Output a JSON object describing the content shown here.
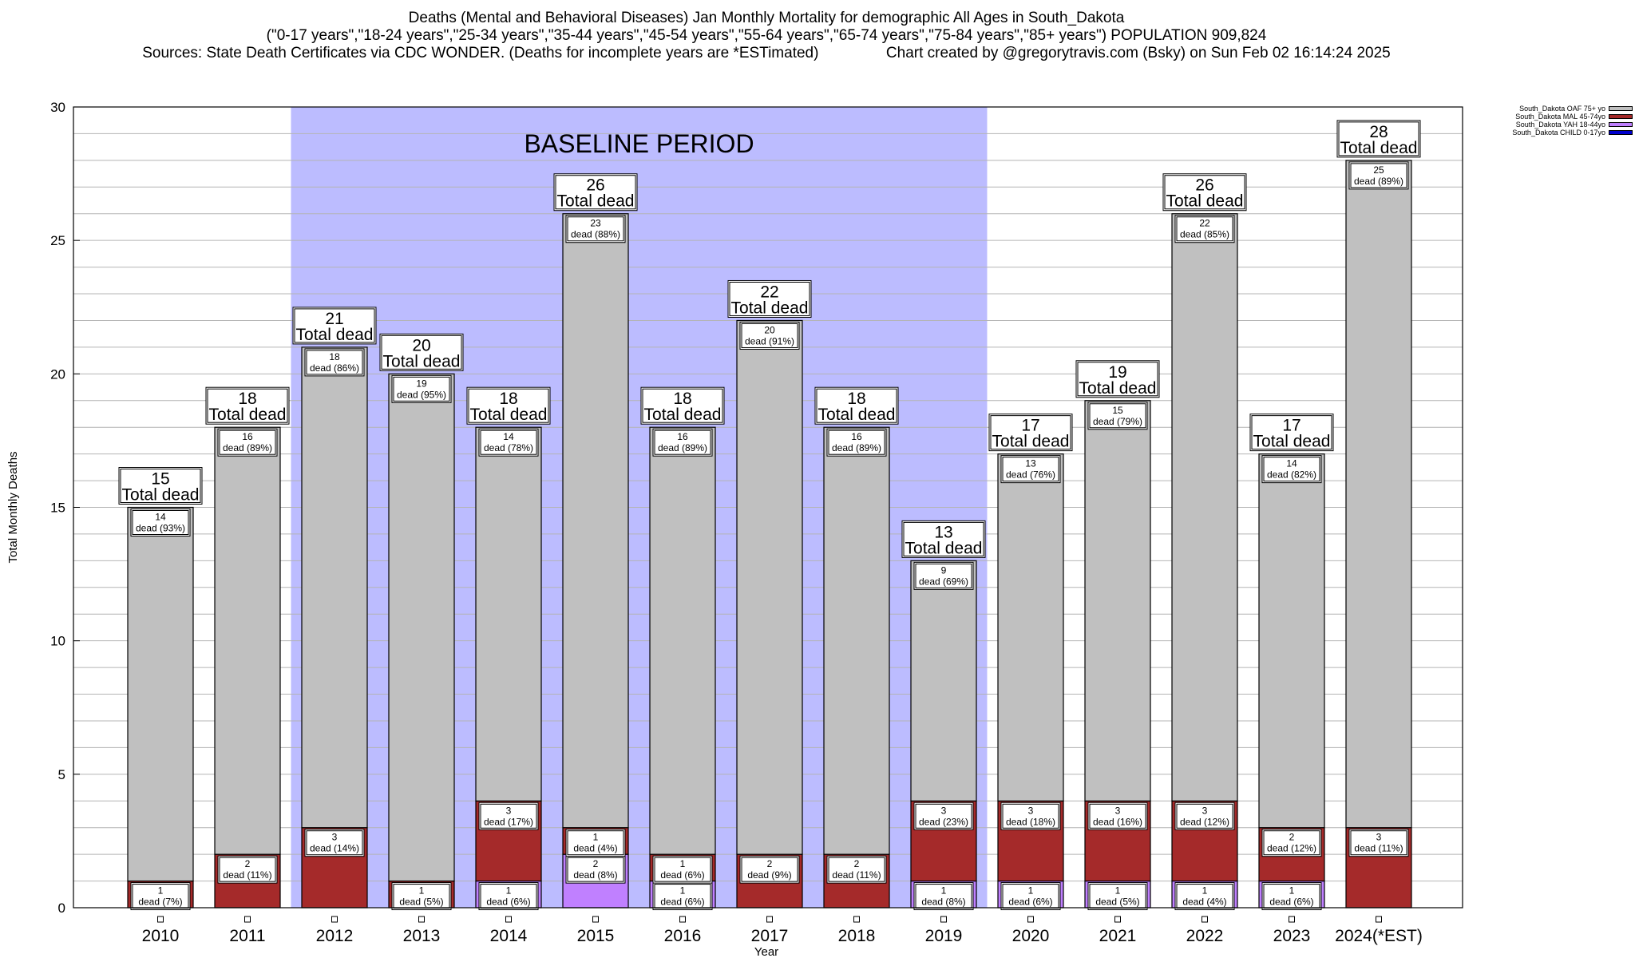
{
  "chart_title": {
    "line1": "Deaths (Mental and Behavioral Diseases) Jan Monthly Mortality for demographic All Ages in South_Dakota",
    "line2": "(\"0-17 years\",\"18-24 years\",\"25-34 years\",\"35-44 years\",\"45-54 years\",\"55-64 years\",\"65-74 years\",\"75-84 years\",\"85+ years\") POPULATION 909,824",
    "line3_left": "Sources: State Death Certificates via CDC WONDER. (Deaths for incomplete years are *ESTimated)",
    "line3_right": "Chart created by @gregorytravis.com (Bsky) on Sun Feb 02 16:14:24 2025"
  },
  "colors": {
    "oaf": "#c0c0c0",
    "mal": "#a52a2a",
    "yah": "#c080ff",
    "child": "#0000cd",
    "baseline": "#bcbcff"
  },
  "chart_data": {
    "type": "bar",
    "stacked": true,
    "title": "Deaths (Mental and Behavioral Diseases) Jan Monthly Mortality for demographic All Ages in South_Dakota",
    "xlabel": "Year",
    "ylabel": "Total Monthly Deaths",
    "ylim": [
      0,
      30
    ],
    "yticks": [
      0,
      5,
      10,
      15,
      20,
      25,
      30
    ],
    "grid": true,
    "legend_position": "top-right",
    "baseline_label": "BASELINE PERIOD",
    "baseline_range": [
      "2012",
      "2019"
    ],
    "total_label": "Total dead",
    "segment_label": "dead",
    "categories": [
      "2010",
      "2011",
      "2012",
      "2013",
      "2014",
      "2015",
      "2016",
      "2017",
      "2018",
      "2019",
      "2020",
      "2021",
      "2022",
      "2023",
      "2024(*EST)"
    ],
    "series": [
      {
        "name": "South_Dakota CHILD 0-17yo",
        "key": "child",
        "values": [
          0,
          0,
          0,
          0,
          0,
          0,
          0,
          0,
          0,
          0,
          0,
          0,
          0,
          0,
          0
        ],
        "percents": [
          "",
          "",
          "",
          "",
          "",
          "",
          "",
          "",
          "",
          "",
          "",
          "",
          "",
          "",
          ""
        ]
      },
      {
        "name": "South_Dakota YAH 18-44yo",
        "key": "yah",
        "values": [
          0,
          0,
          0,
          0,
          1,
          2,
          1,
          0,
          0,
          1,
          1,
          1,
          1,
          1,
          0
        ],
        "percents": [
          "",
          "",
          "",
          "",
          "6%",
          "8%",
          "6%",
          "",
          "",
          "8%",
          "6%",
          "5%",
          "4%",
          "6%",
          ""
        ]
      },
      {
        "name": "South_Dakota MAL 45-74yo",
        "key": "mal",
        "values": [
          1,
          2,
          3,
          1,
          3,
          1,
          1,
          2,
          2,
          3,
          3,
          3,
          3,
          2,
          3
        ],
        "percents": [
          "7%",
          "11%",
          "14%",
          "5%",
          "17%",
          "4%",
          "6%",
          "9%",
          "11%",
          "23%",
          "18%",
          "16%",
          "12%",
          "12%",
          "11%"
        ]
      },
      {
        "name": "South_Dakota OAF 75+ yo",
        "key": "oaf",
        "values": [
          14,
          16,
          18,
          19,
          14,
          23,
          16,
          20,
          16,
          9,
          13,
          15,
          22,
          14,
          25
        ],
        "percents": [
          "93%",
          "89%",
          "86%",
          "95%",
          "78%",
          "88%",
          "89%",
          "91%",
          "89%",
          "69%",
          "76%",
          "79%",
          "85%",
          "82%",
          "89%"
        ]
      }
    ],
    "totals": [
      15,
      18,
      21,
      20,
      18,
      26,
      18,
      22,
      18,
      13,
      17,
      19,
      26,
      17,
      28
    ],
    "legend_order": [
      "oaf",
      "mal",
      "yah",
      "child"
    ]
  }
}
